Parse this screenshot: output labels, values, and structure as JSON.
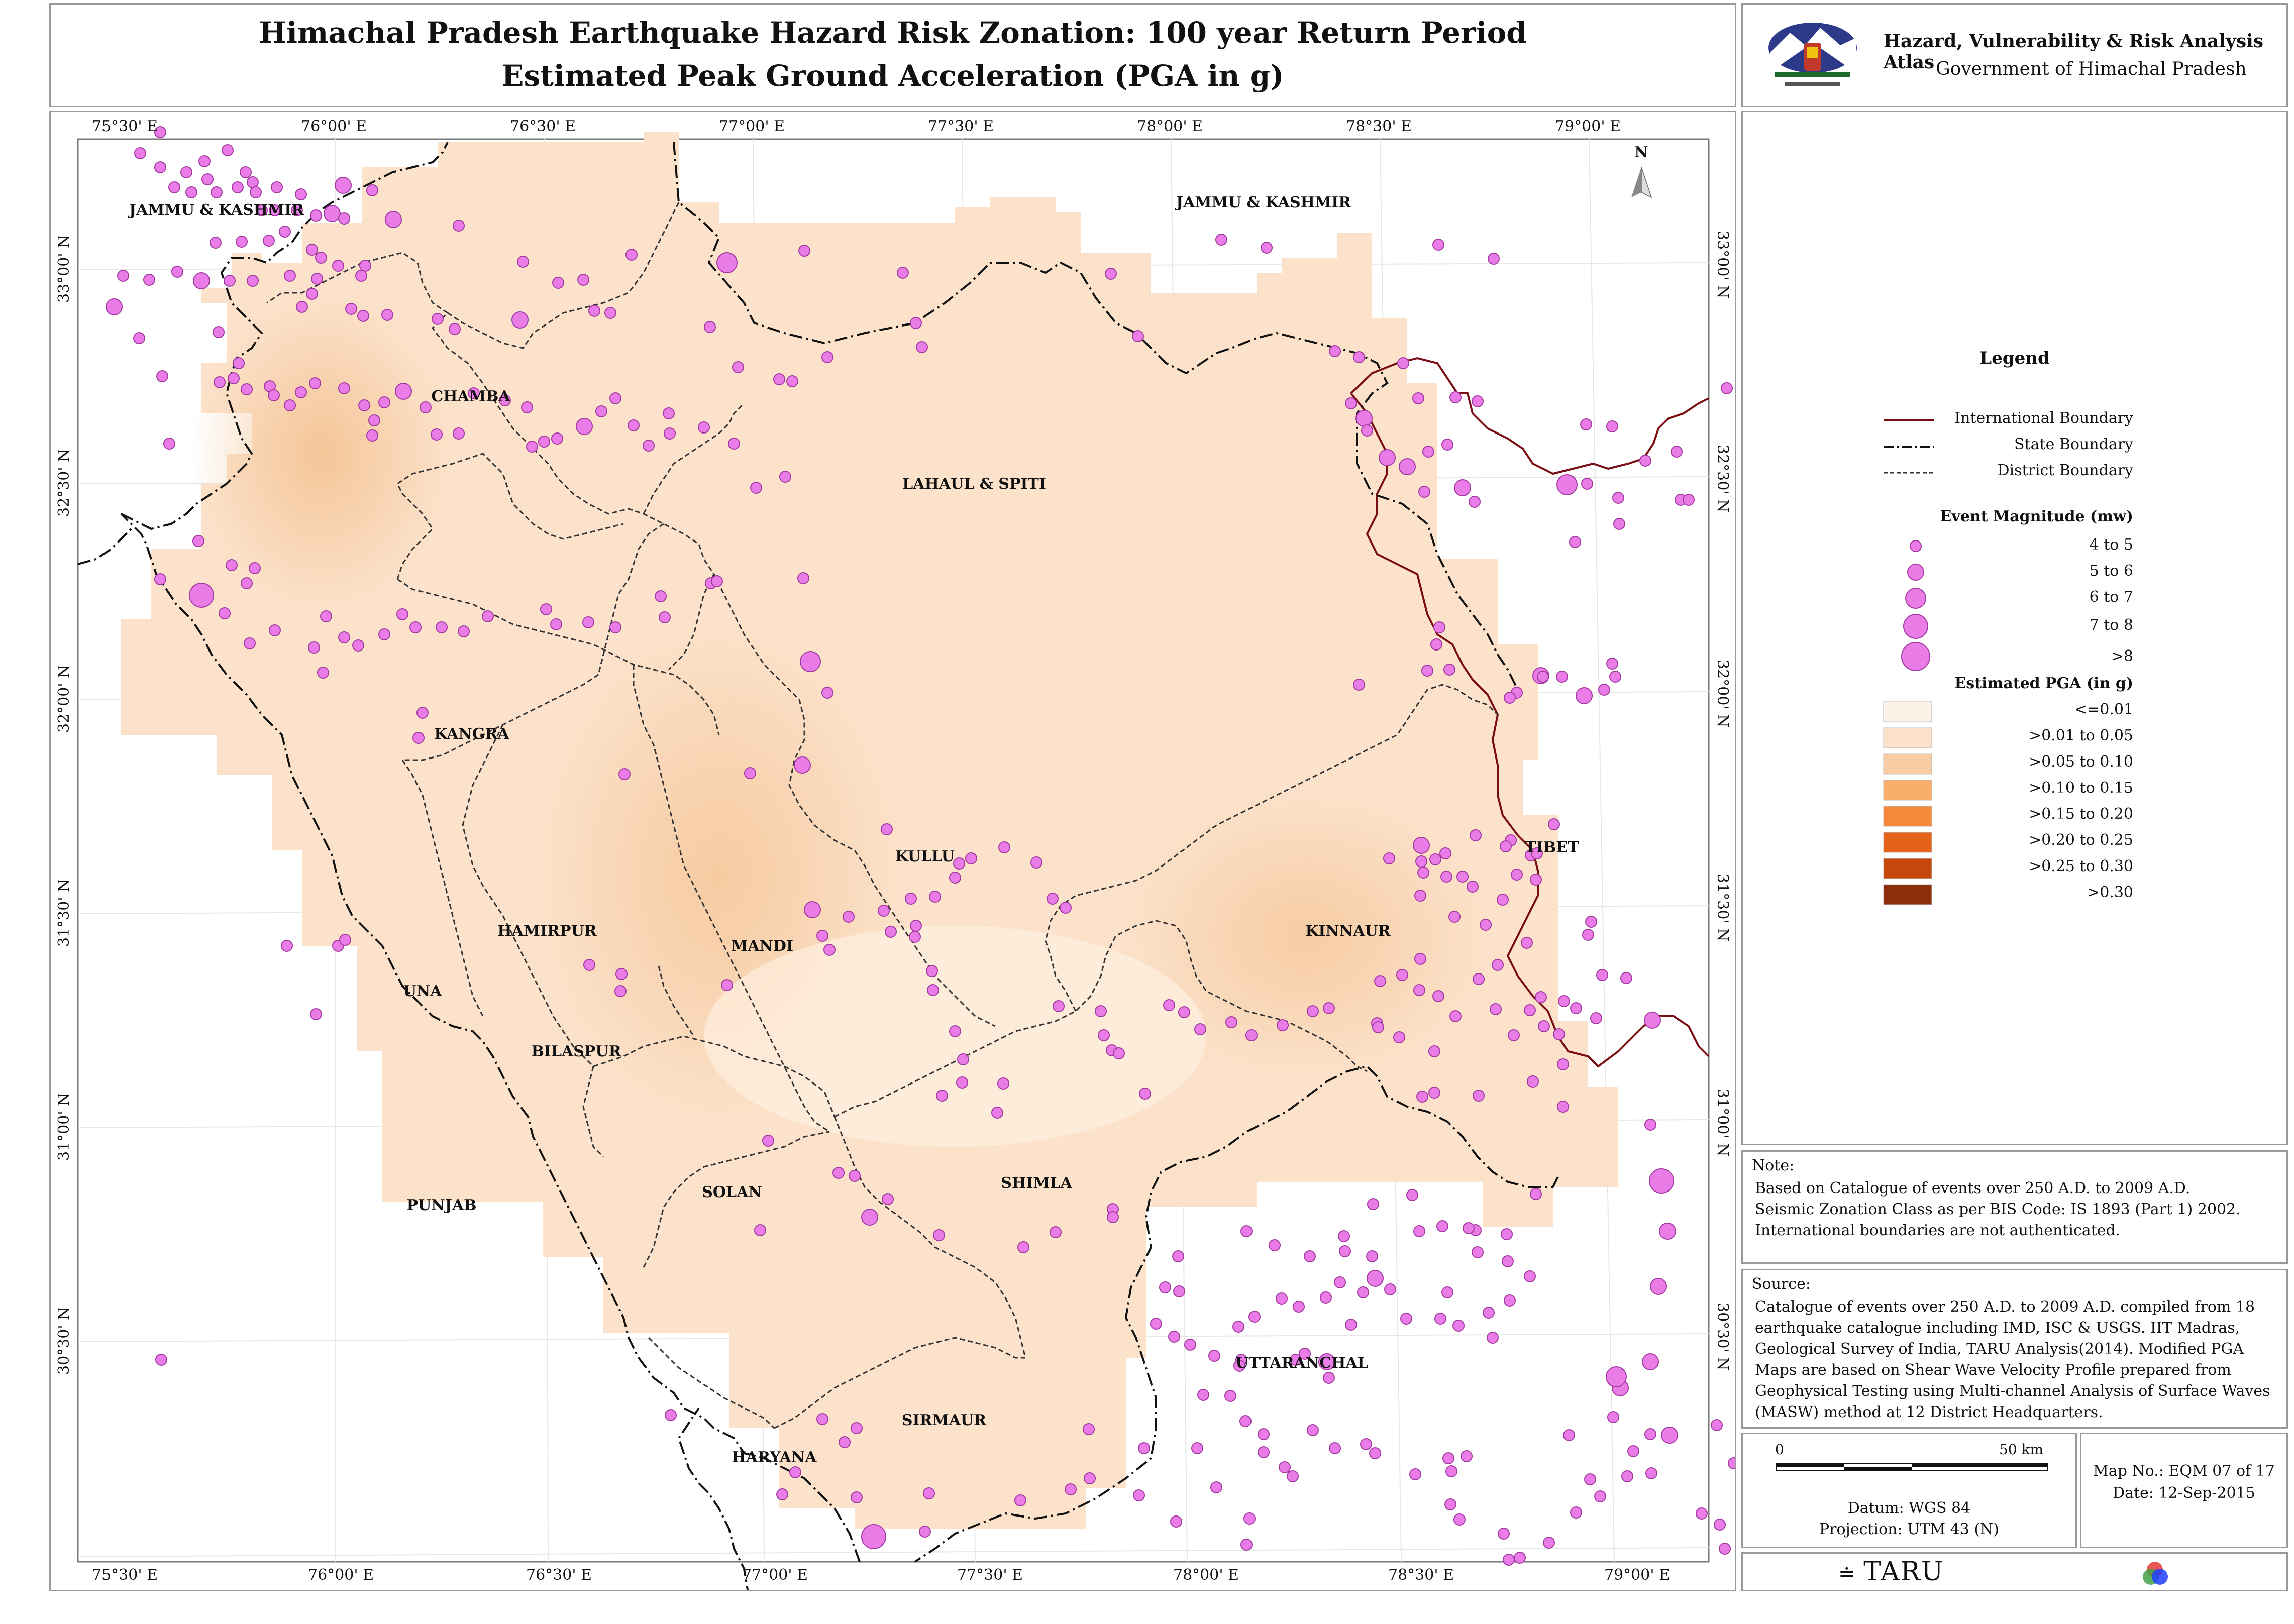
{
  "title": {
    "line1": "Himachal Pradesh Earthquake Hazard Risk Zonation: 100 year Return Period",
    "line2": "Estimated Peak Ground Acceleration (PGA in g)"
  },
  "atlas": {
    "name": "Hazard, Vulnerability & Risk Analysis Atlas",
    "govt": "Government of Himachal Pradesh"
  },
  "map": {
    "top_ticks": [
      "75°30' E",
      "76°00' E",
      "76°30' E",
      "77°00' E",
      "77°30' E",
      "78°00' E",
      "78°30' E",
      "79°00' E"
    ],
    "bottom_ticks": [
      "75°30' E",
      "76°00' E",
      "76°30' E",
      "77°00' E",
      "77°30' E",
      "78°00' E",
      "78°30' E",
      "79°00' E"
    ],
    "left_ticks": [
      "33°00' N",
      "32°30' N",
      "32°00' N",
      "31°30' N",
      "31°00' N",
      "30°30' N"
    ],
    "right_ticks": [
      "33°00' N",
      "32°30' N",
      "32°00' N",
      "31°30' N",
      "31°00' N",
      "30°30' N"
    ],
    "north": "N",
    "labels": {
      "jk_west": "JAMMU & KASHMIR",
      "jk_east": "JAMMU & KASHMIR",
      "chamba": "CHAMBA",
      "lahaul": "LAHAUL & SPITI",
      "kangra": "KANGRA",
      "kullu": "KULLU",
      "hamirpur": "HAMIRPUR",
      "mandi": "MANDI",
      "kinnaur": "KINNAUR",
      "una": "UNA",
      "bilaspur": "BILASPUR",
      "tibet": "TIBET",
      "solan": "SOLAN",
      "shimla": "SHIMLA",
      "punjab": "PUNJAB",
      "uttaranchal": "UTTARANCHAL",
      "sirmaur": "SIRMAUR",
      "haryana": "HARYANA"
    }
  },
  "legend": {
    "title": "Legend",
    "boundaries": [
      "International Boundary",
      "State Boundary",
      "District Boundary"
    ],
    "magnitude_title": "Event Magnitude (mw)",
    "magnitudes": [
      "4 to 5",
      "5 to 6",
      "6 to 7",
      "7 to 8",
      ">8"
    ],
    "pga_title": "Estimated PGA (in g)",
    "pga_classes": [
      {
        "label": "<=0.01",
        "color": "#fdf2e8"
      },
      {
        "label": ">0.01 to 0.05",
        "color": "#fce2cb"
      },
      {
        "label": ">0.05 to 0.10",
        "color": "#f9cda3"
      },
      {
        "label": ">0.10 to 0.15",
        "color": "#f9ae6b"
      },
      {
        "label": ">0.15 to 0.20",
        "color": "#f68a3a"
      },
      {
        "label": ">0.20 to 0.25",
        "color": "#e4621a"
      },
      {
        "label": ">0.25 to 0.30",
        "color": "#c6460c"
      },
      {
        "label": ">0.30",
        "color": "#8c2f0a"
      }
    ],
    "colors": {
      "international": "#7a0d14",
      "event_fill": "#ea7ce8",
      "event_stroke": "#a23aa0"
    }
  },
  "note": {
    "heading": "Note:",
    "lines": [
      "Based on Catalogue of events over 250 A.D. to 2009 A.D.",
      "Seismic Zonation Class as per BIS Code: IS 1893 (Part 1) 2002.",
      "International boundaries are not authenticated."
    ]
  },
  "source": {
    "heading": "Source:",
    "text": "Catalogue of events over 250 A.D. to 2009 A.D. compiled from 18 earthquake catalogue including IMD, ISC & USGS. IIT Madras, Geological Survey of India, TARU Analysis(2014). Modified PGA Maps are based on Shear Wave Velocity Profile prepared from Geophysical Testing using Multi-channel Analysis of Surface Waves (MASW) method at 12 District Headquarters."
  },
  "scale": {
    "zero": "0",
    "max": "50 km",
    "datum": "Datum: WGS 84",
    "projection": "Projection: UTM 43 (N)"
  },
  "mapinfo": {
    "map_no": "Map No.: EQM 07 of 17",
    "date": "Date: 12-Sep-2015"
  },
  "footer": {
    "taru": "TARU"
  }
}
